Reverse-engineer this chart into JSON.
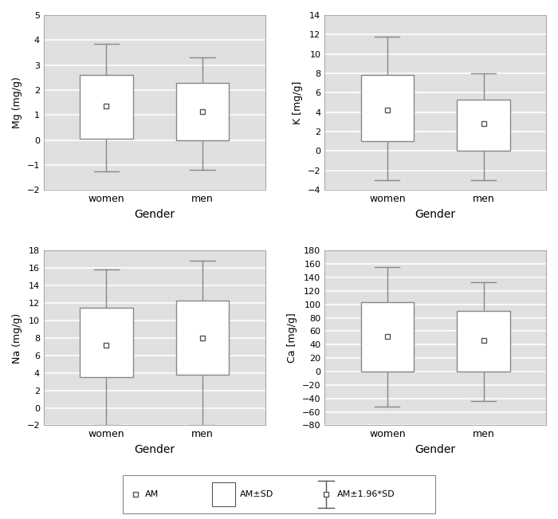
{
  "panels": [
    {
      "ylabel": "Mg (mg/g)",
      "ylim": [
        -2,
        5
      ],
      "yticks": [
        -2,
        -1,
        0,
        1,
        2,
        3,
        4,
        5
      ],
      "groups": [
        {
          "label": "women",
          "am": 1.35,
          "q1": 0.05,
          "q3": 2.62,
          "whisker_low": -1.25,
          "whisker_high": 3.85
        },
        {
          "label": "men",
          "am": 1.15,
          "q1": 0.0,
          "q3": 2.28,
          "whisker_low": -1.2,
          "whisker_high": 3.3
        }
      ]
    },
    {
      "ylabel": "K [mg/g]",
      "ylim": [
        -4,
        14
      ],
      "yticks": [
        -4,
        -2,
        0,
        2,
        4,
        6,
        8,
        10,
        12,
        14
      ],
      "groups": [
        {
          "label": "women",
          "am": 4.2,
          "q1": 1.0,
          "q3": 7.8,
          "whisker_low": -3.0,
          "whisker_high": 11.8
        },
        {
          "label": "men",
          "am": 2.8,
          "q1": 0.0,
          "q3": 5.3,
          "whisker_low": -3.0,
          "whisker_high": 8.0
        }
      ]
    },
    {
      "ylabel": "Na (mg/g)",
      "ylim": [
        -2,
        18
      ],
      "yticks": [
        -2,
        0,
        2,
        4,
        6,
        8,
        10,
        12,
        14,
        16,
        18
      ],
      "groups": [
        {
          "label": "women",
          "am": 7.2,
          "q1": 3.5,
          "q3": 11.5,
          "whisker_low": -2.0,
          "whisker_high": 15.8
        },
        {
          "label": "men",
          "am": 8.0,
          "q1": 3.8,
          "q3": 12.3,
          "whisker_low": -2.0,
          "whisker_high": 16.8
        }
      ]
    },
    {
      "ylabel": "Ca [mg/g]",
      "ylim": [
        -80,
        180
      ],
      "yticks": [
        -80,
        -60,
        -40,
        -20,
        0,
        20,
        40,
        60,
        80,
        100,
        120,
        140,
        160,
        180
      ],
      "groups": [
        {
          "label": "women",
          "am": 52.0,
          "q1": 0.0,
          "q3": 103.0,
          "whisker_low": -52.0,
          "whisker_high": 155.0
        },
        {
          "label": "men",
          "am": 46.0,
          "q1": 0.0,
          "q3": 90.0,
          "whisker_low": -44.0,
          "whisker_high": 133.0
        }
      ]
    }
  ],
  "xlabel": "Gender",
  "box_width": 0.55,
  "box_color": "white",
  "box_edgecolor": "#888888",
  "whisker_color": "#888888",
  "marker_color": "#555555",
  "plot_bg_color": "#e0e0e0",
  "grid_color": "white",
  "fig_bg_color": "white"
}
